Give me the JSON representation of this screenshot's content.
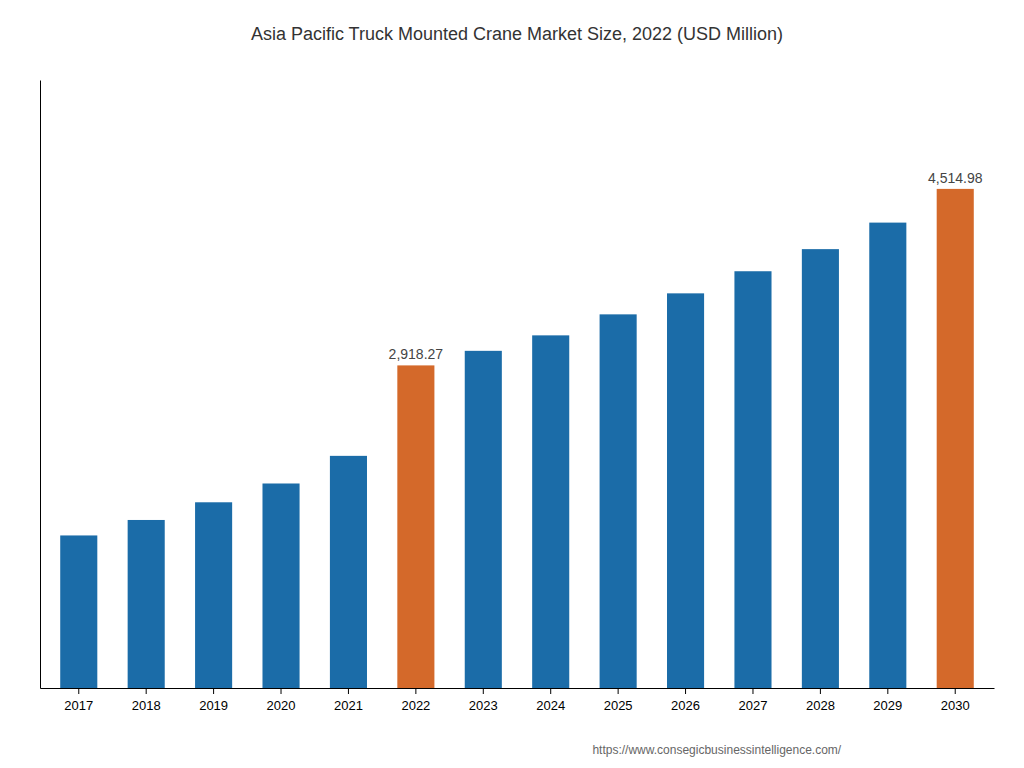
{
  "chart_data": {
    "type": "bar",
    "title": "Asia Pacific Truck Mounted Crane Market Size, 2022 (USD Million)",
    "categories": [
      "2017",
      "2018",
      "2019",
      "2020",
      "2021",
      "2022",
      "2023",
      "2024",
      "2025",
      "2026",
      "2027",
      "2028",
      "2029",
      "2030"
    ],
    "values": [
      1380,
      1520,
      1680,
      1850,
      2100,
      2918.27,
      3050,
      3190,
      3380,
      3570,
      3770,
      3970,
      4210,
      4514.98
    ],
    "value_labels": [
      null,
      null,
      null,
      null,
      null,
      "2,918.27",
      null,
      null,
      null,
      null,
      null,
      null,
      null,
      "4,514.98"
    ],
    "colors": [
      "#1b6ca8",
      "#1b6ca8",
      "#1b6ca8",
      "#1b6ca8",
      "#1b6ca8",
      "#d4692a",
      "#1b6ca8",
      "#1b6ca8",
      "#1b6ca8",
      "#1b6ca8",
      "#1b6ca8",
      "#1b6ca8",
      "#1b6ca8",
      "#d4692a"
    ],
    "ylim": [
      0,
      5500
    ],
    "grid": false,
    "tick_labels": "x",
    "annotations": [
      "https://www.consegicbusinessintelligence.com/"
    ]
  }
}
